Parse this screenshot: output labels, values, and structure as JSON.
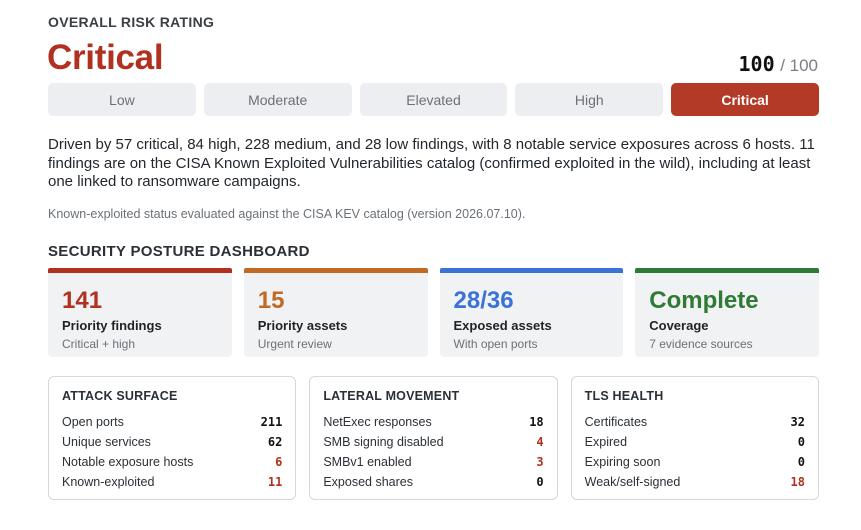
{
  "header": {
    "overall_label": "OVERALL RISK RATING"
  },
  "rating": {
    "title": "Critical",
    "score": "100",
    "max": "/ 100"
  },
  "scale": [
    {
      "label": "Low",
      "active": false
    },
    {
      "label": "Moderate",
      "active": false
    },
    {
      "label": "Elevated",
      "active": false
    },
    {
      "label": "High",
      "active": false
    },
    {
      "label": "Critical",
      "active": true
    }
  ],
  "summary": "Driven by 57 critical, 84 high, 228 medium, and 28 low findings, with 8 notable service exposures across 6 hosts. 11 findings are on the CISA Known Exploited Vulnerabilities catalog (confirmed exploited in the wild), including at least one linked to ransomware campaigns.",
  "kev_note": "Known-exploited status evaluated against the CISA KEV catalog (version 2026.07.10).",
  "posture_label": "SECURITY POSTURE DASHBOARD",
  "colors": {
    "critical": "#b0311f",
    "orange": "#c06a25",
    "blue": "#3a72d6",
    "green": "#2f7a35"
  },
  "cards": [
    {
      "value": "141",
      "title": "Priority findings",
      "sub": "Critical + high",
      "color": "#b0311f"
    },
    {
      "value": "15",
      "title": "Priority assets",
      "sub": "Urgent review",
      "color": "#c06a25"
    },
    {
      "value": "28/36",
      "title": "Exposed assets",
      "sub": "With open ports",
      "color": "#3a72d6"
    },
    {
      "value": "Complete",
      "title": "Coverage",
      "sub": "7 evidence sources",
      "color": "#2f7a35"
    }
  ],
  "panels": [
    {
      "title": "ATTACK SURFACE",
      "rows": [
        {
          "label": "Open ports",
          "value": "211",
          "red": false
        },
        {
          "label": "Unique services",
          "value": "62",
          "red": false
        },
        {
          "label": "Notable exposure hosts",
          "value": "6",
          "red": true
        },
        {
          "label": "Known-exploited",
          "value": "11",
          "red": true
        }
      ]
    },
    {
      "title": "LATERAL MOVEMENT",
      "rows": [
        {
          "label": "NetExec responses",
          "value": "18",
          "red": false
        },
        {
          "label": "SMB signing disabled",
          "value": "4",
          "red": true
        },
        {
          "label": "SMBv1 enabled",
          "value": "3",
          "red": true
        },
        {
          "label": "Exposed shares",
          "value": "0",
          "red": false
        }
      ]
    },
    {
      "title": "TLS HEALTH",
      "rows": [
        {
          "label": "Certificates",
          "value": "32",
          "red": false
        },
        {
          "label": "Expired",
          "value": "0",
          "red": false
        },
        {
          "label": "Expiring soon",
          "value": "0",
          "red": false
        },
        {
          "label": "Weak/self-signed",
          "value": "18",
          "red": true
        }
      ]
    }
  ]
}
